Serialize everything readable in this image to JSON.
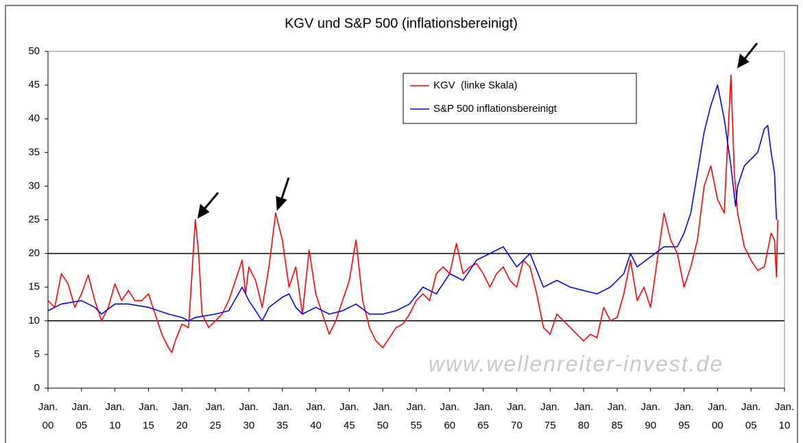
{
  "chart_data": {
    "type": "line",
    "title": "KGV und S&P 500 (inflationsbereinigt)",
    "watermark": "www.wellenreiter-invest.de",
    "legend": "top-right",
    "ylim": [
      0,
      50
    ],
    "yticks": [
      0,
      5,
      10,
      15,
      20,
      25,
      30,
      35,
      40,
      45,
      50
    ],
    "xlim": [
      1900,
      2010
    ],
    "xticks": [
      {
        "value": 1900,
        "label": "Jan. 00"
      },
      {
        "value": 1905,
        "label": "Jan. 05"
      },
      {
        "value": 1910,
        "label": "Jan. 10"
      },
      {
        "value": 1915,
        "label": "Jan. 15"
      },
      {
        "value": 1920,
        "label": "Jan. 20"
      },
      {
        "value": 1925,
        "label": "Jan. 25"
      },
      {
        "value": 1930,
        "label": "Jan. 30"
      },
      {
        "value": 1935,
        "label": "Jan. 35"
      },
      {
        "value": 1940,
        "label": "Jan. 40"
      },
      {
        "value": 1945,
        "label": "Jan. 45"
      },
      {
        "value": 1950,
        "label": "Jan. 50"
      },
      {
        "value": 1955,
        "label": "Jan. 55"
      },
      {
        "value": 1960,
        "label": "Jan. 60"
      },
      {
        "value": 1965,
        "label": "Jan. 65"
      },
      {
        "value": 1970,
        "label": "Jan. 70"
      },
      {
        "value": 1975,
        "label": "Jan. 75"
      },
      {
        "value": 1980,
        "label": "Jan. 80"
      },
      {
        "value": 1985,
        "label": "Jan. 85"
      },
      {
        "value": 1990,
        "label": "Jan. 90"
      },
      {
        "value": 1995,
        "label": "Jan. 95"
      },
      {
        "value": 2000,
        "label": "Jan. 00"
      },
      {
        "value": 2005,
        "label": "Jan. 05"
      },
      {
        "value": 2010,
        "label": "Jan. 10"
      }
    ],
    "reference_lines": [
      10,
      20
    ],
    "series": [
      {
        "name": "KGV  (linke Skala)",
        "color": "#ff0000",
        "x": [
          1900,
          1901,
          1902,
          1903,
          1904,
          1905,
          1906,
          1907,
          1908,
          1909,
          1910,
          1911,
          1912,
          1913,
          1914,
          1915,
          1916,
          1917,
          1918,
          1918.5,
          1919,
          1920,
          1921,
          1922,
          1922.5,
          1923,
          1924,
          1925,
          1926,
          1927,
          1928,
          1929,
          1929.5,
          1930,
          1931,
          1932,
          1933,
          1934,
          1935,
          1936,
          1937,
          1938,
          1939,
          1940,
          1941,
          1942,
          1943,
          1944,
          1945,
          1946,
          1947,
          1948,
          1949,
          1950,
          1951,
          1952,
          1953,
          1954,
          1955,
          1956,
          1957,
          1958,
          1959,
          1960,
          1961,
          1962,
          1963,
          1964,
          1965,
          1966,
          1967,
          1968,
          1969,
          1970,
          1971,
          1972,
          1973,
          1974,
          1975,
          1976,
          1977,
          1978,
          1979,
          1980,
          1981,
          1982,
          1983,
          1984,
          1985,
          1986,
          1987,
          1988,
          1989,
          1990,
          1991,
          1992,
          1993,
          1994,
          1995,
          1996,
          1997,
          1998,
          1999,
          2000,
          2001,
          2002,
          2002.5,
          2003,
          2004,
          2005,
          2006,
          2007,
          2008,
          2008.5,
          2008.8,
          2009
        ],
        "values": [
          13,
          12,
          17,
          15.5,
          12,
          14,
          16.8,
          13,
          10,
          12,
          15.5,
          13,
          14.5,
          13,
          13,
          14,
          11,
          8,
          6,
          5.3,
          7,
          9.5,
          9,
          25,
          20,
          11,
          9,
          10,
          11,
          13,
          16,
          19,
          14,
          18,
          16,
          12,
          18,
          26,
          22,
          15,
          18,
          11,
          20.5,
          14,
          11,
          8,
          10,
          13,
          16,
          22,
          13,
          9,
          7,
          6,
          7.5,
          9,
          9.5,
          11,
          13,
          14,
          13,
          17,
          18,
          17,
          21.5,
          17,
          18,
          18.5,
          17,
          15,
          17,
          18,
          16,
          15,
          19,
          18,
          14,
          9,
          8,
          11,
          10,
          9,
          8,
          7,
          8,
          7.5,
          12,
          10,
          10.5,
          14,
          19,
          13,
          15,
          12,
          19,
          26,
          22,
          20,
          15,
          18,
          22,
          30,
          33,
          28,
          26,
          46.5,
          32,
          26,
          21,
          19,
          17.5,
          18,
          23,
          22,
          16.5,
          25
        ]
      },
      {
        "name": "S&P 500 inflationsbereinigt",
        "color": "#0000ff",
        "x": [
          1900,
          1902,
          1905,
          1907,
          1908,
          1910,
          1912,
          1915,
          1918,
          1920,
          1921,
          1922,
          1925,
          1927,
          1929,
          1930,
          1932,
          1933,
          1935,
          1936,
          1937,
          1938,
          1940,
          1942,
          1944,
          1946,
          1948,
          1950,
          1952,
          1954,
          1956,
          1958,
          1960,
          1962,
          1964,
          1966,
          1968,
          1970,
          1972,
          1974,
          1976,
          1978,
          1980,
          1982,
          1984,
          1986,
          1987,
          1988,
          1990,
          1992,
          1994,
          1995,
          1996,
          1997,
          1998,
          1999,
          2000,
          2001,
          2002,
          2002.7,
          2003,
          2004,
          2005,
          2006,
          2007,
          2007.5,
          2008,
          2008.5,
          2008.8
        ],
        "values": [
          11.5,
          12.5,
          13,
          12,
          11,
          12.5,
          12.5,
          12,
          11,
          10.5,
          10,
          10.5,
          11,
          11.5,
          15,
          13,
          10,
          12,
          13.5,
          14,
          12,
          11,
          12,
          11,
          11.5,
          12.5,
          11,
          11,
          11.5,
          12.5,
          15,
          14,
          17,
          16,
          19,
          20,
          21,
          18,
          20,
          15,
          16,
          15,
          14.5,
          14,
          15,
          17,
          20,
          18,
          19.5,
          21,
          21,
          23,
          26,
          32,
          38,
          42,
          45,
          40,
          33,
          27,
          30,
          33,
          34,
          35,
          38.5,
          39,
          35,
          32,
          25
        ]
      }
    ]
  }
}
